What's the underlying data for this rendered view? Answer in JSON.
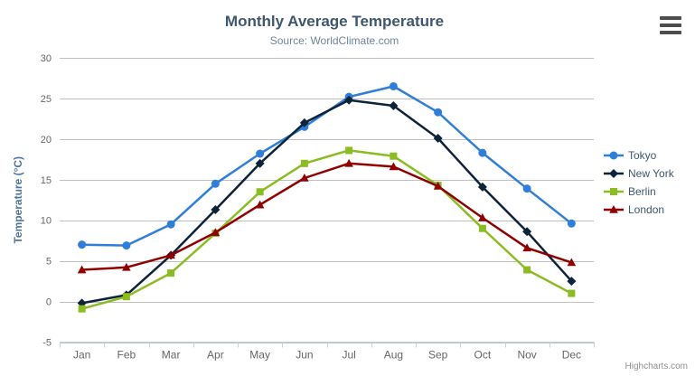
{
  "chart_data": {
    "type": "line",
    "title": "Monthly Average Temperature",
    "subtitle": "Source: WorldClimate.com",
    "xlabel": "",
    "ylabel": "Temperature (°C)",
    "ylim": [
      -5,
      30
    ],
    "yticks": [
      30,
      25,
      20,
      15,
      10,
      5,
      0,
      -5
    ],
    "grid": true,
    "legend_position": "right",
    "categories": [
      "Jan",
      "Feb",
      "Mar",
      "Apr",
      "May",
      "Jun",
      "Jul",
      "Aug",
      "Sep",
      "Oct",
      "Nov",
      "Dec"
    ],
    "series": [
      {
        "name": "Tokyo",
        "color": "#2f7ed8",
        "marker": "circle",
        "values": [
          7.0,
          6.9,
          9.5,
          14.5,
          18.2,
          21.5,
          25.2,
          26.5,
          23.3,
          18.3,
          13.9,
          9.6
        ]
      },
      {
        "name": "New York",
        "color": "#0d233a",
        "marker": "diamond",
        "values": [
          -0.2,
          0.8,
          5.7,
          11.3,
          17.0,
          22.0,
          24.8,
          24.1,
          20.1,
          14.1,
          8.6,
          2.5
        ]
      },
      {
        "name": "Berlin",
        "color": "#8bbc21",
        "marker": "square",
        "values": [
          -0.9,
          0.6,
          3.5,
          8.4,
          13.5,
          17.0,
          18.6,
          17.9,
          14.3,
          9.0,
          3.9,
          1.0
        ]
      },
      {
        "name": "London",
        "color": "#910000",
        "marker": "triangle",
        "values": [
          3.9,
          4.2,
          5.7,
          8.5,
          11.9,
          15.2,
          17.0,
          16.6,
          14.2,
          10.3,
          6.6,
          4.8
        ]
      }
    ],
    "style": {
      "grid_color": "#C0C0C0",
      "axis_line_color": "#C0D0E0",
      "tick_label_color": "#666666",
      "y_axis_title_color": "#4d759e"
    }
  },
  "icons": {
    "context_menu": "hamburger-menu-icon"
  },
  "credits": "Highcharts.com"
}
